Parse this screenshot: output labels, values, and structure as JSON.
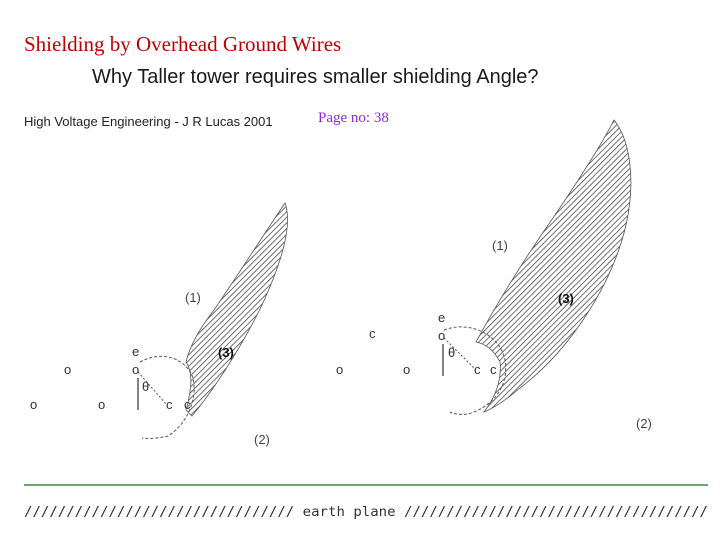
{
  "header": {
    "title": "Shielding by Overhead Ground Wires",
    "subtitle": "Why Taller tower requires smaller shielding Angle?",
    "source": "High Voltage Engineering  -  J R Lucas  2001",
    "page_ref": "Page no: 38"
  },
  "colors": {
    "title": "#c00000",
    "page_ref": "#8a2be2",
    "earth_line": "#3c8c3c",
    "hatch": "#333333"
  },
  "left_diagram": {
    "region1": "(1)",
    "region2": "(2)",
    "region3": "(3)",
    "earth_wire": "e",
    "earth_conductor_symbol": "o",
    "angle": "θ",
    "conductor_c1": "c",
    "conductor_c2": "c",
    "conductor_symbol": "o"
  },
  "right_diagram": {
    "region1": "(1)",
    "region2": "(2)",
    "region3": "(3)",
    "earth_wire": "e",
    "earth_conductor_symbol": "o",
    "angle": "θ",
    "conductor_c1": "c",
    "conductor_c2": "c",
    "conductor_c3": "c",
    "conductor_symbol": "o"
  },
  "ground": {
    "earth_plane": "//////////////////////////////// earth plane ////////////////////////////////////"
  }
}
